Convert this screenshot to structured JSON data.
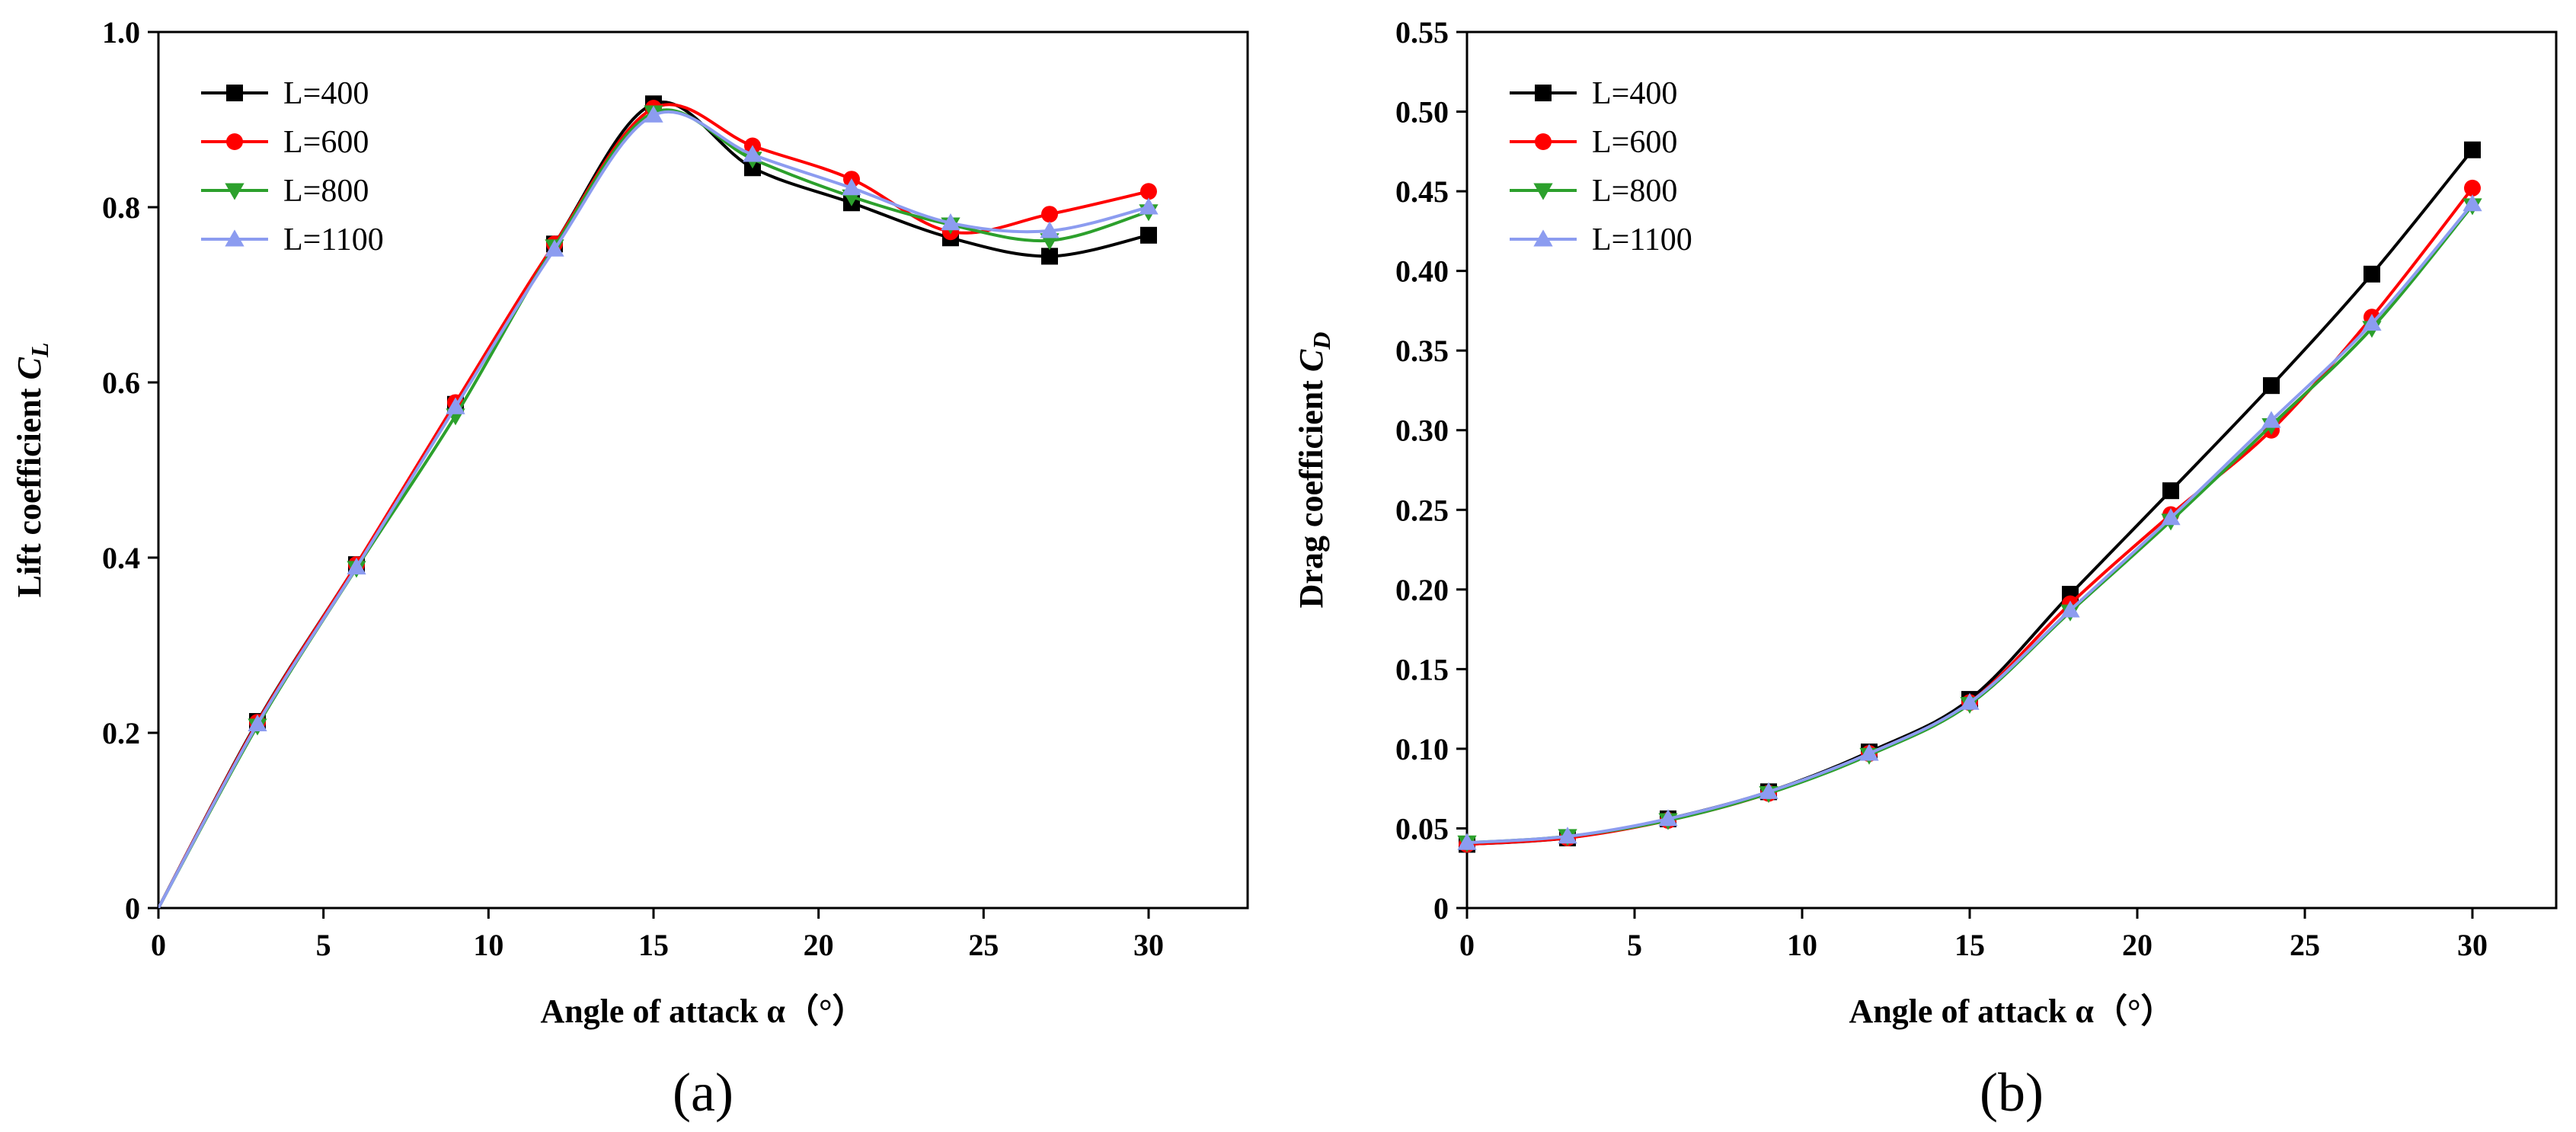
{
  "chart_data": [
    {
      "type": "line",
      "panel_label": "(a)",
      "xlabel": "Angle of attack α（°）",
      "ylabel": "Lift coefficient C_L",
      "ylabel_main": "Lift coefficient ",
      "ylabel_symbol": "C",
      "ylabel_sub": "L",
      "xlim": [
        0,
        33
      ],
      "ylim": [
        0,
        1.0
      ],
      "xticks": [
        0,
        5,
        10,
        15,
        20,
        25,
        30
      ],
      "yticks": [
        0,
        0.2,
        0.4,
        0.6,
        0.8,
        1.0
      ],
      "ytick_labels": [
        "0",
        "0.2",
        "0.4",
        "0.6",
        "0.8",
        "1.0"
      ],
      "grid": false,
      "legend_position": "top-left",
      "x": [
        0,
        3,
        6,
        9,
        12,
        15,
        18,
        21,
        24,
        27,
        30
      ],
      "series": [
        {
          "name": "L=400",
          "color": "#000000",
          "marker": "square",
          "values": [
            0,
            0.213,
            0.392,
            0.575,
            0.758,
            0.918,
            0.845,
            0.805,
            0.765,
            0.744,
            0.768
          ]
        },
        {
          "name": "L=600",
          "color": "#ff0000",
          "marker": "circle",
          "values": [
            0,
            0.212,
            0.392,
            0.577,
            0.758,
            0.913,
            0.87,
            0.832,
            0.772,
            0.792,
            0.818
          ]
        },
        {
          "name": "L=800",
          "color": "#2ca02c",
          "marker": "triangle-down",
          "values": [
            0,
            0.208,
            0.388,
            0.562,
            0.755,
            0.908,
            0.855,
            0.812,
            0.78,
            0.762,
            0.795
          ]
        },
        {
          "name": "L=1100",
          "color": "#8c9cf0",
          "marker": "triangle-up",
          "values": [
            0,
            0.21,
            0.389,
            0.572,
            0.752,
            0.905,
            0.86,
            0.822,
            0.782,
            0.773,
            0.8
          ]
        }
      ]
    },
    {
      "type": "line",
      "panel_label": "(b)",
      "xlabel": "Angle of attack α（°）",
      "ylabel": "Drag coefficient C_D",
      "ylabel_main": "Drag coefficient ",
      "ylabel_symbol": "C",
      "ylabel_sub": "D",
      "xlim": [
        0,
        32.5
      ],
      "ylim": [
        0,
        0.55
      ],
      "xticks": [
        0,
        5,
        10,
        15,
        20,
        25,
        30
      ],
      "yticks": [
        0,
        0.05,
        0.1,
        0.15,
        0.2,
        0.25,
        0.3,
        0.35,
        0.4,
        0.45,
        0.5,
        0.55
      ],
      "ytick_labels": [
        "0",
        "0.05",
        "0.10",
        "0.15",
        "0.20",
        "0.25",
        "0.30",
        "0.35",
        "0.40",
        "0.45",
        "0.50",
        "0.55"
      ],
      "grid": false,
      "legend_position": "top-left",
      "x": [
        0,
        3,
        6,
        9,
        12,
        15,
        18,
        21,
        24,
        27,
        30
      ],
      "series": [
        {
          "name": "L=400",
          "color": "#000000",
          "marker": "square",
          "values": [
            0.04,
            0.044,
            0.056,
            0.073,
            0.098,
            0.131,
            0.197,
            0.262,
            0.328,
            0.398,
            0.476
          ]
        },
        {
          "name": "L=600",
          "color": "#ff0000",
          "marker": "circle",
          "values": [
            0.04,
            0.044,
            0.055,
            0.072,
            0.097,
            0.129,
            0.191,
            0.247,
            0.3,
            0.371,
            0.452
          ]
        },
        {
          "name": "L=800",
          "color": "#2ca02c",
          "marker": "triangle-down",
          "values": [
            0.041,
            0.045,
            0.055,
            0.072,
            0.096,
            0.128,
            0.186,
            0.243,
            0.303,
            0.364,
            0.441
          ]
        },
        {
          "name": "L=1100",
          "color": "#8c9cf0",
          "marker": "triangle-up",
          "values": [
            0.041,
            0.045,
            0.056,
            0.073,
            0.097,
            0.129,
            0.187,
            0.245,
            0.306,
            0.367,
            0.442
          ]
        }
      ]
    }
  ]
}
